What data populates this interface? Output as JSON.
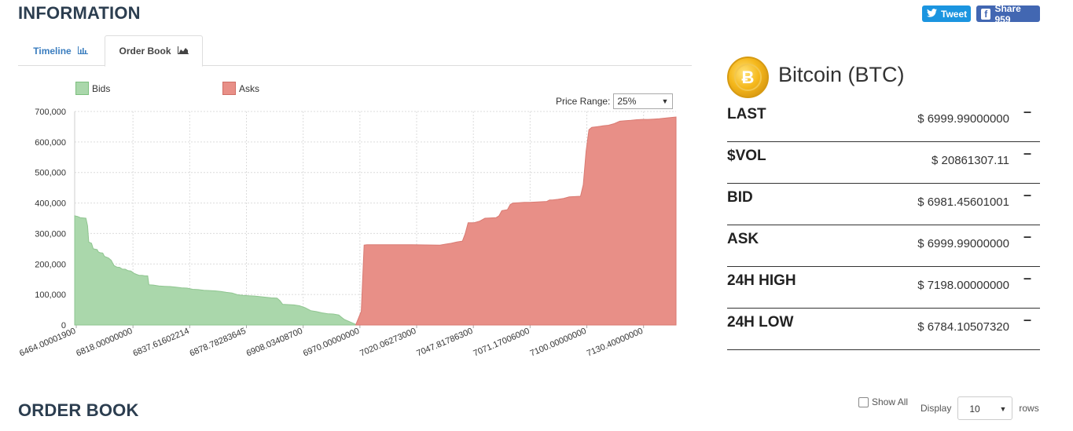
{
  "header": {
    "title": "INFORMATION",
    "tweet_label": "Tweet",
    "share_label": "Share 959"
  },
  "tabs": [
    {
      "label": "Timeline",
      "icon": "bar-chart-icon",
      "active": false
    },
    {
      "label": "Order Book",
      "icon": "area-chart-icon",
      "active": true
    }
  ],
  "chart_controls": {
    "price_range_label": "Price Range:",
    "price_range_value": "25%"
  },
  "chart_data": {
    "type": "area",
    "series": [
      {
        "name": "Bids",
        "color": "#aad7ab",
        "points": [
          [
            0,
            358000
          ],
          [
            0.5,
            356000
          ],
          [
            1,
            352000
          ],
          [
            2,
            350000
          ],
          [
            2.3,
            325000
          ],
          [
            2.5,
            272000
          ],
          [
            3,
            268000
          ],
          [
            3.3,
            250000
          ],
          [
            4,
            247000
          ],
          [
            4.2,
            240000
          ],
          [
            4.5,
            237000
          ],
          [
            5,
            236000
          ],
          [
            5.3,
            225000
          ],
          [
            6,
            220000
          ],
          [
            6.5,
            212000
          ],
          [
            7,
            195000
          ],
          [
            7.5,
            190000
          ],
          [
            8,
            189000
          ],
          [
            8.5,
            183000
          ],
          [
            9,
            183000
          ],
          [
            9.5,
            178000
          ],
          [
            10,
            177000
          ],
          [
            10.5,
            170000
          ],
          [
            11,
            166000
          ],
          [
            11.5,
            163000
          ],
          [
            12,
            163000
          ],
          [
            12.5,
            161000
          ],
          [
            13,
            161000
          ],
          [
            13.2,
            132000
          ],
          [
            14,
            131000
          ],
          [
            15,
            128000
          ],
          [
            16,
            127000
          ],
          [
            17,
            126000
          ],
          [
            18,
            124000
          ],
          [
            19,
            122000
          ],
          [
            20,
            121000
          ],
          [
            21,
            117000
          ],
          [
            22,
            116000
          ],
          [
            23,
            114000
          ],
          [
            24,
            113000
          ],
          [
            25,
            112000
          ],
          [
            26,
            110000
          ],
          [
            27,
            107000
          ],
          [
            28,
            105000
          ],
          [
            29,
            99000
          ],
          [
            30,
            97000
          ],
          [
            31,
            96000
          ],
          [
            32,
            95000
          ],
          [
            33,
            93000
          ],
          [
            34,
            91000
          ],
          [
            35,
            89000
          ],
          [
            36,
            88000
          ],
          [
            36.5,
            80000
          ],
          [
            37,
            68000
          ],
          [
            38,
            67000
          ],
          [
            39,
            66000
          ],
          [
            40,
            63000
          ],
          [
            41,
            57000
          ],
          [
            42,
            47000
          ],
          [
            43,
            44000
          ],
          [
            44,
            40000
          ],
          [
            45,
            37000
          ],
          [
            46,
            36000
          ],
          [
            47,
            33000
          ],
          [
            47.5,
            25000
          ],
          [
            48,
            18000
          ],
          [
            49,
            10000
          ],
          [
            50,
            2000
          ]
        ]
      },
      {
        "name": "Asks",
        "color": "#e88f87",
        "points": [
          [
            50,
            0
          ],
          [
            51,
            45000
          ],
          [
            51.5,
            262000
          ],
          [
            52,
            263000
          ],
          [
            60,
            263000
          ],
          [
            65,
            262000
          ],
          [
            66,
            265000
          ],
          [
            67,
            268000
          ],
          [
            68,
            272000
          ],
          [
            69,
            275000
          ],
          [
            69.5,
            300000
          ],
          [
            70,
            335000
          ],
          [
            71,
            335000
          ],
          [
            72,
            340000
          ],
          [
            73,
            350000
          ],
          [
            74,
            351000
          ],
          [
            75,
            352000
          ],
          [
            75.5,
            358000
          ],
          [
            76,
            375000
          ],
          [
            77,
            378000
          ],
          [
            77.5,
            395000
          ],
          [
            78,
            400000
          ],
          [
            79,
            401000
          ],
          [
            80,
            402000
          ],
          [
            81,
            402000
          ],
          [
            82,
            403000
          ],
          [
            83,
            404000
          ],
          [
            84,
            405000
          ],
          [
            84.5,
            410000
          ],
          [
            85,
            410000
          ],
          [
            86,
            412000
          ],
          [
            87,
            415000
          ],
          [
            88,
            420000
          ],
          [
            89,
            421000
          ],
          [
            90,
            422000
          ],
          [
            90.5,
            460000
          ],
          [
            91,
            570000
          ],
          [
            91.5,
            640000
          ],
          [
            92,
            648000
          ],
          [
            93,
            650000
          ],
          [
            94,
            653000
          ],
          [
            95,
            655000
          ],
          [
            96,
            660000
          ],
          [
            97,
            668000
          ],
          [
            98,
            670000
          ],
          [
            99,
            671000
          ],
          [
            100,
            673000
          ],
          [
            101,
            674000
          ],
          [
            102,
            674000
          ],
          [
            103,
            675000
          ],
          [
            104,
            676000
          ],
          [
            105,
            678000
          ],
          [
            106,
            680000
          ],
          [
            107,
            682000
          ]
        ]
      }
    ],
    "x_tick_labels": [
      "6464.00001900",
      "6818.00000000",
      "6837.61602214",
      "6878.78283645",
      "6908.03408700",
      "6970.00000000",
      "7020.06273000",
      "7047.81786300",
      "7071.17006000",
      "7100.00000000",
      "7130.40000000"
    ],
    "y_ticks": [
      "0",
      "100,000",
      "200,000",
      "300,000",
      "400,000",
      "500,000",
      "600,000",
      "700,000"
    ],
    "ylim": [
      0,
      700000
    ],
    "grid": true,
    "legend": "top-left"
  },
  "coin": {
    "name": "Bitcoin (BTC)",
    "symbol": "Ƀ"
  },
  "stats": [
    {
      "label": "LAST",
      "value": "$ 6999.99000000"
    },
    {
      "label": "$VOL",
      "value": "$ 20861307.11"
    },
    {
      "label": "BID",
      "value": "$ 6981.45601001"
    },
    {
      "label": "ASK",
      "value": "$ 6999.99000000"
    },
    {
      "label": "24H HIGH",
      "value": "$ 7198.00000000"
    },
    {
      "label": "24H LOW",
      "value": "$ 6784.10507320"
    }
  ],
  "order_book": {
    "title": "ORDER BOOK",
    "show_all_label": "Show All",
    "display_label": "Display",
    "rows_value": "10",
    "rows_label": "rows"
  }
}
